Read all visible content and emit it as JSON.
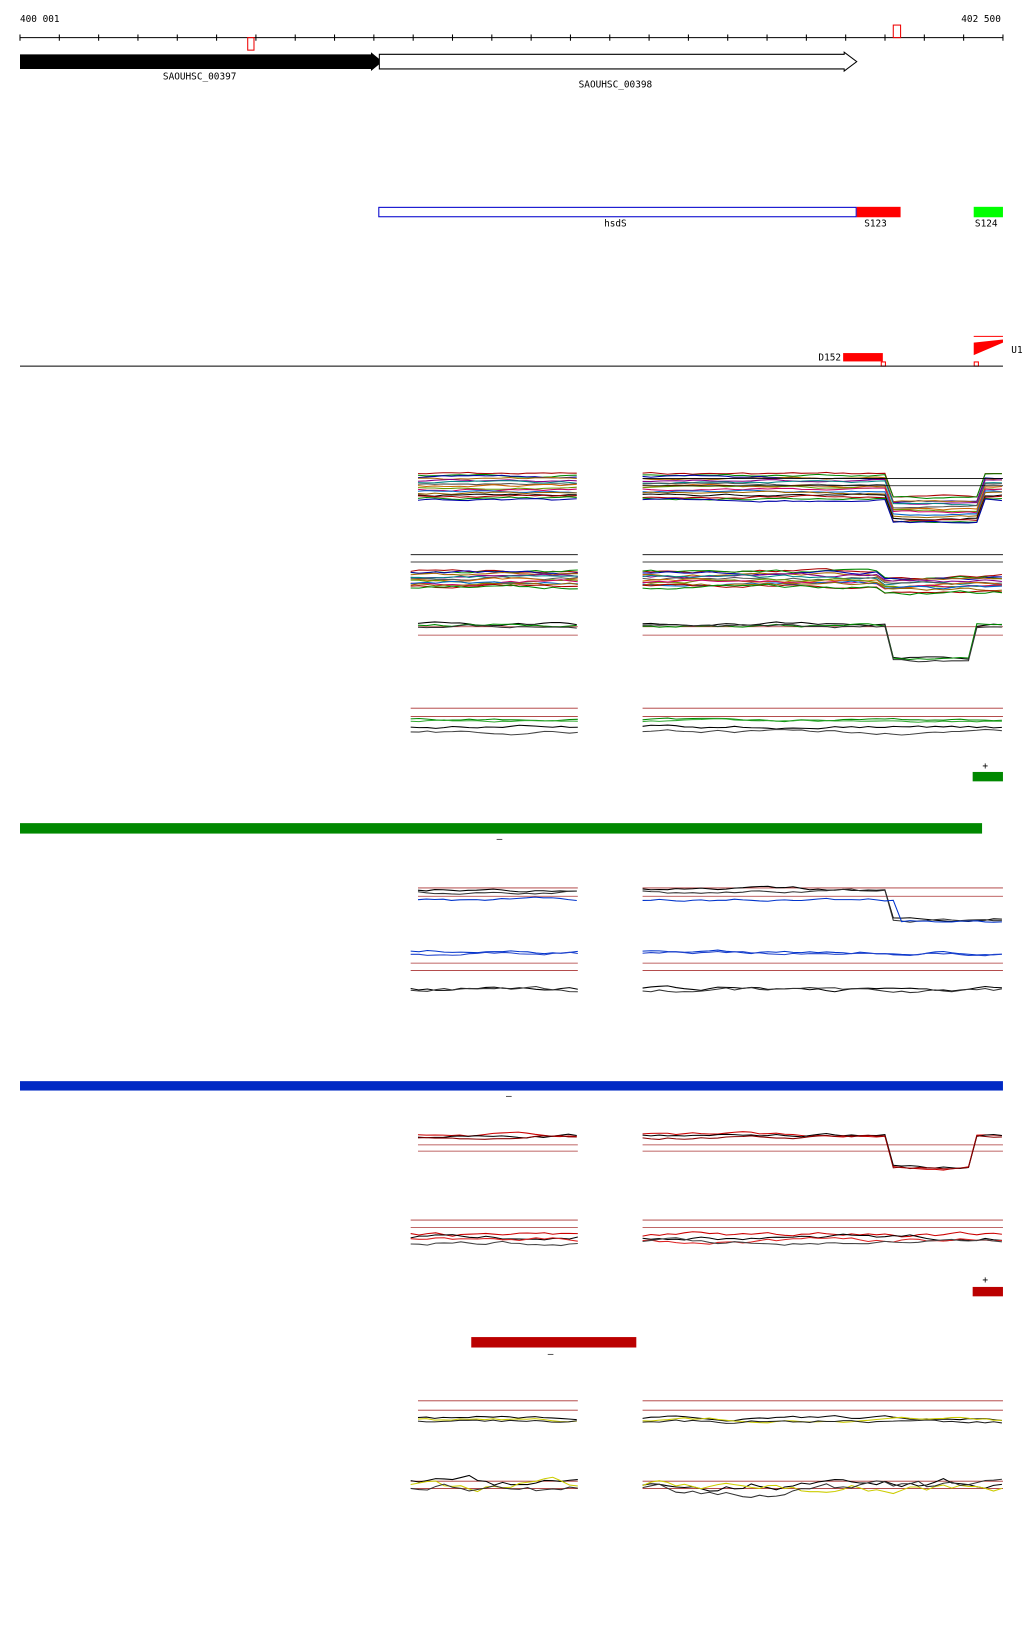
{
  "ruler": {
    "start": "400 001",
    "end": "402 500"
  },
  "genes": [
    {
      "label": "SAOUHSC_00397"
    },
    {
      "label": "SAOUHSC_00398"
    }
  ],
  "features": [
    {
      "label": "hsdS"
    },
    {
      "label": "S123"
    },
    {
      "label": "S124"
    }
  ],
  "segments": [
    {
      "label": "D152"
    },
    {
      "label": "U1"
    }
  ],
  "strand_blocks": [
    {
      "label": "+"
    },
    {
      "label": "–"
    },
    {
      "label": "–"
    },
    {
      "label": "+"
    },
    {
      "label": "–"
    }
  ]
}
